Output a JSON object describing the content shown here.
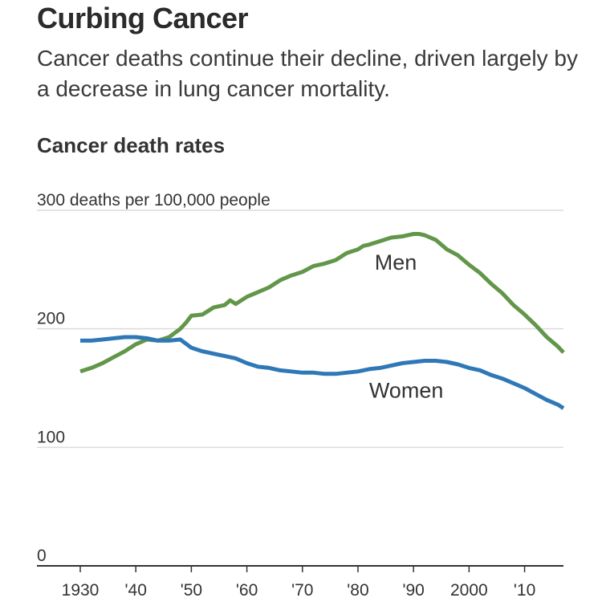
{
  "title": "Curbing Cancer",
  "subtitle": "Cancer deaths continue their decline, driven largely by a decrease in lung cancer mortality.",
  "chart_heading": "Cancer death rates",
  "colors": {
    "men": "#62964a",
    "women": "#2f78b7",
    "grid": "#dcdcdc",
    "axis": "#333333"
  },
  "chart_data": {
    "type": "line",
    "title": "Cancer death rates",
    "ylabel": "300 deaths per 100,000 people",
    "xlabel": "",
    "xlim": [
      1930,
      2017
    ],
    "ylim": [
      0,
      300
    ],
    "y_ticks": [
      {
        "value": 300,
        "label": "300 deaths per 100,000 people"
      },
      {
        "value": 200,
        "label": "200"
      },
      {
        "value": 100,
        "label": "100"
      },
      {
        "value": 0,
        "label": "0"
      }
    ],
    "x_ticks": [
      {
        "value": 1930,
        "label": "1930"
      },
      {
        "value": 1940,
        "label": "'40"
      },
      {
        "value": 1950,
        "label": "'50"
      },
      {
        "value": 1960,
        "label": "'60"
      },
      {
        "value": 1970,
        "label": "'70"
      },
      {
        "value": 1980,
        "label": "'80"
      },
      {
        "value": 1990,
        "label": "'90"
      },
      {
        "value": 2000,
        "label": "2000"
      },
      {
        "value": 2010,
        "label": "'10"
      }
    ],
    "series": [
      {
        "name": "Men",
        "color": "#62964a",
        "x": [
          1930,
          1932,
          1934,
          1936,
          1938,
          1940,
          1942,
          1944,
          1946,
          1948,
          1949,
          1950,
          1952,
          1954,
          1956,
          1957,
          1958,
          1960,
          1962,
          1964,
          1966,
          1968,
          1970,
          1972,
          1974,
          1976,
          1978,
          1980,
          1981,
          1982,
          1984,
          1986,
          1988,
          1990,
          1991,
          1992,
          1994,
          1996,
          1998,
          2000,
          2002,
          2004,
          2006,
          2008,
          2010,
          2012,
          2014,
          2016,
          2017
        ],
        "values": [
          164,
          167,
          171,
          176,
          181,
          187,
          191,
          190,
          193,
          200,
          205,
          211,
          212,
          218,
          220,
          224,
          221,
          227,
          231,
          235,
          241,
          245,
          248,
          253,
          255,
          258,
          264,
          267,
          270,
          271,
          274,
          277,
          278,
          280,
          280,
          279,
          275,
          267,
          262,
          254,
          247,
          238,
          230,
          220,
          212,
          203,
          193,
          185,
          180
        ]
      },
      {
        "name": "Women",
        "color": "#2f78b7",
        "x": [
          1930,
          1932,
          1934,
          1936,
          1938,
          1940,
          1942,
          1944,
          1946,
          1948,
          1950,
          1952,
          1954,
          1956,
          1958,
          1960,
          1962,
          1964,
          1966,
          1968,
          1970,
          1972,
          1974,
          1976,
          1978,
          1980,
          1982,
          1984,
          1986,
          1988,
          1990,
          1992,
          1994,
          1996,
          1998,
          2000,
          2002,
          2004,
          2006,
          2008,
          2010,
          2012,
          2014,
          2016,
          2017
        ],
        "values": [
          190,
          190,
          191,
          192,
          193,
          193,
          192,
          190,
          190,
          191,
          184,
          181,
          179,
          177,
          175,
          171,
          168,
          167,
          165,
          164,
          163,
          163,
          162,
          162,
          163,
          164,
          166,
          167,
          169,
          171,
          172,
          173,
          173,
          172,
          170,
          167,
          165,
          161,
          158,
          154,
          150,
          145,
          140,
          136,
          133
        ]
      }
    ]
  }
}
